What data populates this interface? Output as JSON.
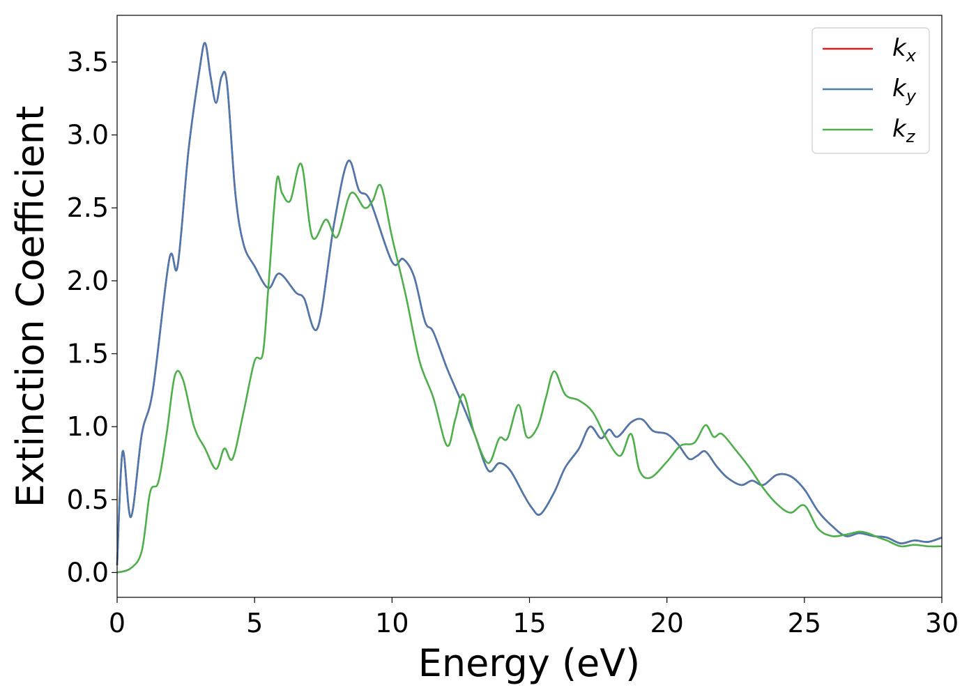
{
  "chart_data": {
    "type": "line",
    "xlabel": "Energy (eV)",
    "ylabel": "Extinction Coefficient",
    "xlim": [
      0,
      30
    ],
    "ylim": [
      -0.17,
      3.82
    ],
    "xticks": [
      0,
      5,
      10,
      15,
      20,
      25,
      30
    ],
    "xtick_labels": [
      "0",
      "5",
      "10",
      "15",
      "20",
      "25",
      "30"
    ],
    "yticks": [
      0.0,
      0.5,
      1.0,
      1.5,
      2.0,
      2.5,
      3.0,
      3.5
    ],
    "ytick_labels": [
      "0.0",
      "0.5",
      "1.0",
      "1.5",
      "2.0",
      "2.5",
      "3.0",
      "3.5"
    ],
    "grid": false,
    "legend_position": "top-right",
    "series": [
      {
        "name": "k",
        "sub": "x",
        "color": "#e41a1c",
        "x": [
          0,
          0.2,
          0.5,
          0.9,
          1.3,
          1.9,
          2.2,
          2.6,
          3.0,
          3.2,
          3.4,
          3.6,
          3.8,
          4.0,
          4.3,
          4.6,
          5.0,
          5.5,
          5.9,
          6.5,
          6.8,
          7.3,
          7.9,
          8.4,
          8.8,
          9.2,
          10.0,
          10.4,
          10.8,
          11.2,
          11.5,
          12.0,
          12.5,
          13.0,
          13.5,
          13.9,
          14.3,
          14.8,
          15.1,
          15.4,
          15.9,
          16.3,
          16.8,
          17.2,
          17.6,
          17.9,
          18.2,
          18.7,
          19.1,
          19.5,
          20.0,
          20.4,
          20.8,
          21.1,
          21.4,
          21.8,
          22.2,
          22.7,
          23.1,
          23.5,
          24.0,
          24.5,
          25.0,
          25.5,
          26.0,
          26.5,
          27.0,
          27.5,
          28.0,
          28.5,
          29.0,
          29.5,
          30.0
        ],
        "y": [
          0.05,
          0.83,
          0.38,
          0.95,
          1.25,
          2.15,
          2.1,
          2.9,
          3.45,
          3.63,
          3.4,
          3.22,
          3.4,
          3.35,
          2.6,
          2.25,
          2.1,
          1.95,
          2.05,
          1.92,
          1.88,
          1.68,
          2.4,
          2.82,
          2.62,
          2.55,
          2.13,
          2.15,
          2.03,
          1.72,
          1.65,
          1.4,
          1.18,
          0.95,
          0.7,
          0.75,
          0.7,
          0.53,
          0.44,
          0.4,
          0.55,
          0.72,
          0.85,
          1.0,
          0.92,
          0.98,
          0.93,
          1.03,
          1.05,
          0.97,
          0.95,
          0.88,
          0.78,
          0.8,
          0.83,
          0.73,
          0.65,
          0.6,
          0.63,
          0.6,
          0.67,
          0.66,
          0.57,
          0.42,
          0.32,
          0.25,
          0.27,
          0.25,
          0.24,
          0.2,
          0.22,
          0.21,
          0.24
        ]
      },
      {
        "name": "k",
        "sub": "y",
        "color": "#4a78b0",
        "x": [
          0,
          0.2,
          0.5,
          0.9,
          1.3,
          1.9,
          2.2,
          2.6,
          3.0,
          3.2,
          3.4,
          3.6,
          3.8,
          4.0,
          4.3,
          4.6,
          5.0,
          5.5,
          5.9,
          6.5,
          6.8,
          7.3,
          7.9,
          8.4,
          8.8,
          9.2,
          10.0,
          10.4,
          10.8,
          11.2,
          11.5,
          12.0,
          12.5,
          13.0,
          13.5,
          13.9,
          14.3,
          14.8,
          15.1,
          15.4,
          15.9,
          16.3,
          16.8,
          17.2,
          17.6,
          17.9,
          18.2,
          18.7,
          19.1,
          19.5,
          20.0,
          20.4,
          20.8,
          21.1,
          21.4,
          21.8,
          22.2,
          22.7,
          23.1,
          23.5,
          24.0,
          24.5,
          25.0,
          25.5,
          26.0,
          26.5,
          27.0,
          27.5,
          28.0,
          28.5,
          29.0,
          29.5,
          30.0
        ],
        "y": [
          0.05,
          0.83,
          0.38,
          0.95,
          1.25,
          2.15,
          2.1,
          2.9,
          3.45,
          3.63,
          3.4,
          3.22,
          3.4,
          3.35,
          2.6,
          2.25,
          2.1,
          1.95,
          2.05,
          1.92,
          1.88,
          1.68,
          2.4,
          2.82,
          2.62,
          2.55,
          2.13,
          2.15,
          2.03,
          1.72,
          1.65,
          1.4,
          1.18,
          0.95,
          0.7,
          0.75,
          0.7,
          0.53,
          0.44,
          0.4,
          0.55,
          0.72,
          0.85,
          1.0,
          0.92,
          0.98,
          0.93,
          1.03,
          1.05,
          0.97,
          0.95,
          0.88,
          0.78,
          0.8,
          0.83,
          0.73,
          0.65,
          0.6,
          0.63,
          0.6,
          0.67,
          0.66,
          0.57,
          0.42,
          0.32,
          0.25,
          0.27,
          0.25,
          0.24,
          0.2,
          0.22,
          0.21,
          0.24
        ]
      },
      {
        "name": "k",
        "sub": "z",
        "color": "#4daf4a",
        "x": [
          0,
          0.5,
          0.9,
          1.2,
          1.5,
          1.8,
          2.1,
          2.4,
          2.8,
          3.2,
          3.6,
          3.9,
          4.2,
          4.6,
          5.0,
          5.3,
          5.5,
          5.8,
          6.0,
          6.3,
          6.7,
          7.1,
          7.6,
          8.0,
          8.5,
          9.0,
          9.3,
          9.6,
          10.0,
          10.5,
          11.0,
          11.5,
          12.0,
          12.3,
          12.6,
          13.0,
          13.5,
          13.9,
          14.2,
          14.6,
          14.9,
          15.3,
          15.6,
          15.9,
          16.3,
          16.8,
          17.3,
          17.8,
          18.3,
          18.7,
          19.0,
          19.4,
          20.0,
          20.5,
          21.0,
          21.4,
          21.7,
          22.0,
          22.5,
          23.0,
          23.5,
          24.0,
          24.5,
          25.0,
          25.5,
          26.0,
          26.5,
          27.0,
          27.3,
          27.7,
          28.0,
          28.5,
          29.0,
          29.5,
          30.0
        ],
        "y": [
          0.0,
          0.03,
          0.15,
          0.55,
          0.62,
          0.95,
          1.35,
          1.32,
          1.0,
          0.85,
          0.71,
          0.85,
          0.78,
          1.1,
          1.45,
          1.5,
          1.95,
          2.68,
          2.6,
          2.55,
          2.8,
          2.3,
          2.42,
          2.3,
          2.6,
          2.5,
          2.55,
          2.65,
          2.3,
          1.9,
          1.45,
          1.2,
          0.87,
          1.05,
          1.22,
          0.95,
          0.75,
          0.92,
          0.92,
          1.15,
          0.93,
          1.0,
          1.2,
          1.38,
          1.22,
          1.18,
          1.1,
          0.92,
          0.8,
          0.95,
          0.7,
          0.65,
          0.76,
          0.87,
          0.89,
          1.01,
          0.93,
          0.95,
          0.84,
          0.72,
          0.58,
          0.47,
          0.41,
          0.46,
          0.3,
          0.25,
          0.26,
          0.28,
          0.27,
          0.24,
          0.22,
          0.18,
          0.19,
          0.18,
          0.18
        ]
      }
    ]
  }
}
